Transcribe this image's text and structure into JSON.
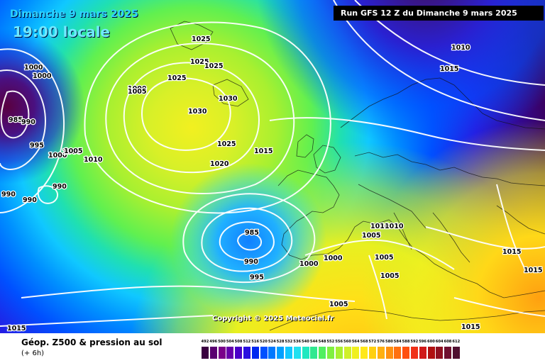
{
  "header": {
    "date": "Dimanche 9 mars 2025",
    "time": "19:00 locale",
    "run": "Run GFS 12 Z du Dimanche 9 mars 2025"
  },
  "copyright": "Copyright © 2025 Meteociel.fr",
  "legend": {
    "title": "Géop. Z500 & pression au sol",
    "subtitle": "(+ 6h)",
    "values": [
      "492",
      "496",
      "500",
      "504",
      "508",
      "512",
      "516",
      "520",
      "524",
      "528",
      "532",
      "536",
      "540",
      "544",
      "548",
      "552",
      "556",
      "560",
      "564",
      "568",
      "572",
      "576",
      "580",
      "584",
      "588",
      "592",
      "596",
      "600",
      "604",
      "608",
      "612"
    ],
    "colors": [
      "#3a0040",
      "#5a0070",
      "#7a008a",
      "#6600aa",
      "#4a00c8",
      "#2a10e0",
      "#0028f0",
      "#0050ff",
      "#0078ff",
      "#00a0ff",
      "#10c8ff",
      "#20e0f0",
      "#20e8c0",
      "#30e890",
      "#50f060",
      "#80f040",
      "#a8f030",
      "#d0f028",
      "#f0f020",
      "#ffe818",
      "#ffd010",
      "#ffb010",
      "#ff9010",
      "#ff7010",
      "#ff5010",
      "#f03018",
      "#d01818",
      "#b01010",
      "#901020",
      "#701030",
      "#501030"
    ]
  },
  "pressure_labels": [
    {
      "text": "1025"
    },
    {
      "text": "1025"
    },
    {
      "text": "1025"
    },
    {
      "text": "1025"
    },
    {
      "text": "1030"
    },
    {
      "text": "1030"
    },
    {
      "text": "1025"
    },
    {
      "text": "1020"
    },
    {
      "text": "1015"
    },
    {
      "text": "1010"
    },
    {
      "text": "1015"
    },
    {
      "text": "1010"
    },
    {
      "text": "1000"
    },
    {
      "text": "1000"
    },
    {
      "text": "1000"
    },
    {
      "text": "985"
    },
    {
      "text": "990"
    },
    {
      "text": "995"
    },
    {
      "text": "1000"
    },
    {
      "text": "1005"
    },
    {
      "text": "1010"
    },
    {
      "text": "990"
    },
    {
      "text": "990"
    },
    {
      "text": "990"
    },
    {
      "text": "985"
    },
    {
      "text": "990"
    },
    {
      "text": "995"
    },
    {
      "text": "1000"
    },
    {
      "text": "1000"
    },
    {
      "text": "1005"
    },
    {
      "text": "1010"
    },
    {
      "text": "1010"
    },
    {
      "text": "1005"
    },
    {
      "text": "1005"
    },
    {
      "text": "1015"
    },
    {
      "text": "1015"
    },
    {
      "text": "1015"
    },
    {
      "text": "1005"
    },
    {
      "text": "1015"
    },
    {
      "text": "1000"
    },
    {
      "text": "1000"
    },
    {
      "text": "1005"
    }
  ]
}
